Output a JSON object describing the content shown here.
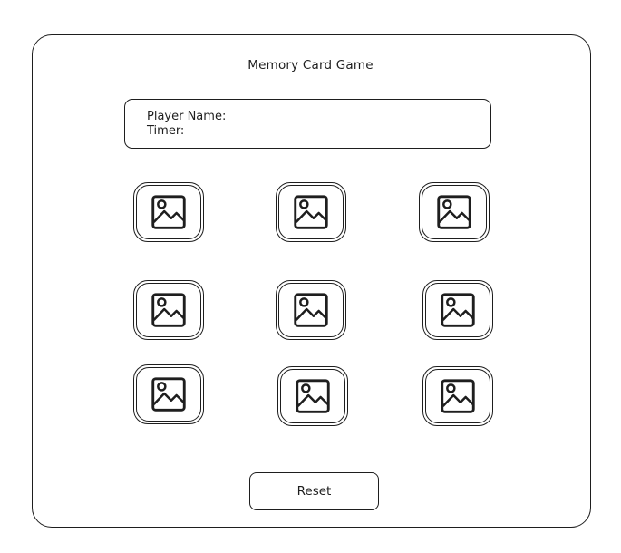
{
  "header": {
    "title": "Memory Card Game"
  },
  "info_panel": {
    "player_name_label": "Player Name:",
    "timer_label": "Timer:"
  },
  "cards": [
    {
      "icon": "image-placeholder-icon"
    },
    {
      "icon": "image-placeholder-icon"
    },
    {
      "icon": "image-placeholder-icon"
    },
    {
      "icon": "image-placeholder-icon"
    },
    {
      "icon": "image-placeholder-icon"
    },
    {
      "icon": "image-placeholder-icon"
    },
    {
      "icon": "image-placeholder-icon"
    },
    {
      "icon": "image-placeholder-icon"
    },
    {
      "icon": "image-placeholder-icon"
    }
  ],
  "controls": {
    "reset_label": "Reset"
  },
  "colors": {
    "stroke": "#1e1e1e",
    "background": "#ffffff"
  }
}
